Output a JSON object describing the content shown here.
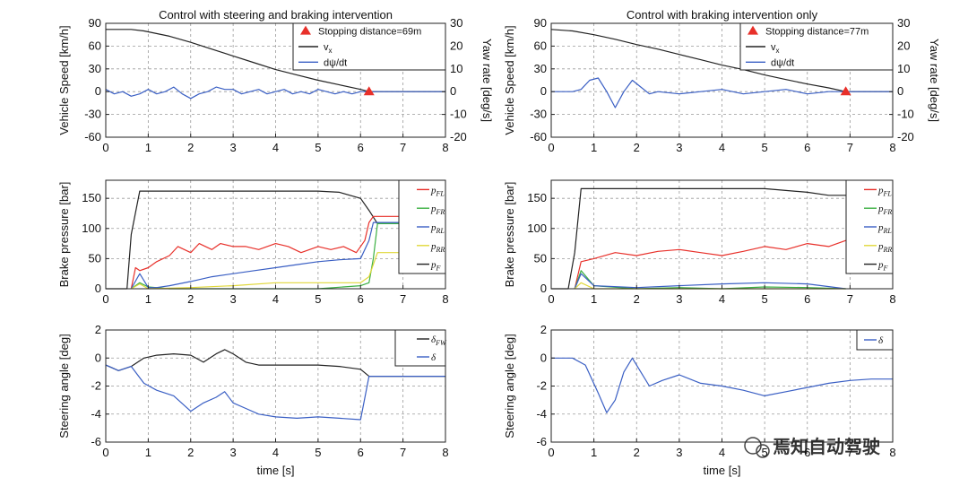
{
  "watermark": "焉知自动驾驶",
  "colors": {
    "black": "#222222",
    "red": "#e8302a",
    "green": "#3cb043",
    "blue": "#3a5fc4",
    "yellow": "#e0d83a",
    "marker": "#e8302a",
    "grid": "#9a9a9a"
  },
  "chart_data": [
    {
      "id": "left-speed",
      "type": "line",
      "title": "Control with steering and braking intervention",
      "ylabel": "Vehicle Speed [km/h]",
      "y2label": "Yaw rate [deg/s]",
      "xlim": [
        0,
        8
      ],
      "ylim": [
        -60,
        90
      ],
      "y2lim": [
        -20,
        30
      ],
      "xticks": [
        0,
        1,
        2,
        3,
        4,
        5,
        6,
        7,
        8
      ],
      "yticks": [
        90,
        60,
        30,
        0,
        -30,
        -60
      ],
      "y2ticks": [
        30,
        20,
        10,
        0,
        -10,
        -20
      ],
      "legend": {
        "position": "top-right",
        "entries": [
          {
            "label": "Stopping distance=69m",
            "kind": "marker",
            "color": "marker"
          },
          {
            "label": "v",
            "sub": "x",
            "kind": "line",
            "color": "black"
          },
          {
            "label": "dψ/dt",
            "kind": "line",
            "color": "blue"
          }
        ]
      },
      "marker": {
        "x": 6.2,
        "y": 0
      },
      "series": [
        {
          "color": "black",
          "axis": "y",
          "x": [
            0,
            0.6,
            0.9,
            1.5,
            2,
            2.5,
            3,
            3.5,
            4,
            4.5,
            5,
            5.5,
            6,
            6.2,
            8
          ],
          "y": [
            82,
            82,
            80,
            73,
            65,
            56,
            47,
            38,
            29,
            22,
            15,
            9,
            3,
            0,
            0
          ]
        },
        {
          "color": "blue",
          "axis": "y2",
          "x": [
            0,
            0.2,
            0.4,
            0.6,
            0.8,
            1,
            1.2,
            1.4,
            1.6,
            1.8,
            2,
            2.2,
            2.4,
            2.6,
            2.8,
            3,
            3.2,
            3.4,
            3.6,
            3.8,
            4,
            4.2,
            4.4,
            4.6,
            4.8,
            5,
            5.2,
            5.4,
            5.6,
            5.8,
            6,
            6.2,
            8
          ],
          "y": [
            1,
            -1,
            0,
            -2,
            -1,
            1,
            -1,
            0,
            2,
            -1,
            -3,
            -1,
            0,
            2,
            1,
            1,
            -1,
            0,
            1,
            -1,
            0,
            1,
            -1,
            0,
            -1,
            1,
            0,
            -1,
            0,
            -1,
            0,
            0,
            0
          ]
        }
      ]
    },
    {
      "id": "right-speed",
      "type": "line",
      "title": "Control with braking intervention only",
      "ylabel": "Vehicle Speed [km/h]",
      "y2label": "Yaw rate [deg/s]",
      "xlim": [
        0,
        8
      ],
      "ylim": [
        -60,
        90
      ],
      "y2lim": [
        -20,
        30
      ],
      "xticks": [
        0,
        1,
        2,
        3,
        4,
        5,
        6,
        7,
        8
      ],
      "yticks": [
        90,
        60,
        30,
        0,
        -30,
        -60
      ],
      "y2ticks": [
        30,
        20,
        10,
        0,
        -10,
        -20
      ],
      "legend": {
        "position": "top-right",
        "entries": [
          {
            "label": "Stopping distance=77m",
            "kind": "marker",
            "color": "marker"
          },
          {
            "label": "v",
            "sub": "x",
            "kind": "line",
            "color": "black"
          },
          {
            "label": "dψ/dt",
            "kind": "line",
            "color": "blue"
          }
        ]
      },
      "marker": {
        "x": 6.9,
        "y": 0
      },
      "series": [
        {
          "color": "black",
          "axis": "y",
          "x": [
            0,
            0.5,
            1,
            1.5,
            2,
            2.5,
            3,
            3.5,
            4,
            4.5,
            5,
            5.5,
            6,
            6.5,
            6.9,
            8
          ],
          "y": [
            82,
            80,
            75,
            69,
            62,
            56,
            49,
            42,
            35,
            29,
            22,
            16,
            10,
            5,
            0,
            0
          ]
        },
        {
          "color": "blue",
          "axis": "y2",
          "x": [
            0,
            0.5,
            0.7,
            0.9,
            1.1,
            1.3,
            1.5,
            1.7,
            1.9,
            2.1,
            2.3,
            2.5,
            3,
            3.5,
            4,
            4.5,
            5,
            5.5,
            6,
            6.5,
            7,
            8
          ],
          "y": [
            0,
            0,
            1,
            5,
            6,
            0,
            -7,
            0,
            5,
            2,
            -1,
            0,
            -1,
            0,
            1,
            -1,
            0,
            1,
            -1,
            0,
            0,
            0
          ]
        }
      ]
    },
    {
      "id": "left-brake",
      "type": "line",
      "ylabel": "Brake pressure [bar]",
      "xlim": [
        0,
        8
      ],
      "ylim": [
        0,
        180
      ],
      "xticks": [
        0,
        1,
        2,
        3,
        4,
        5,
        6,
        7,
        8
      ],
      "yticks": [
        150,
        100,
        50,
        0
      ],
      "legend": {
        "position": "top-right",
        "entries": [
          {
            "label": "p",
            "sub": "FL",
            "color": "red"
          },
          {
            "label": "p",
            "sub": "FR",
            "color": "green"
          },
          {
            "label": "p",
            "sub": "RL",
            "color": "blue"
          },
          {
            "label": "p",
            "sub": "RR",
            "color": "yellow"
          },
          {
            "label": "p",
            "sub": "F",
            "color": "black"
          }
        ]
      },
      "series": [
        {
          "color": "black",
          "x": [
            0,
            0.5,
            0.6,
            0.8,
            1.5,
            2,
            3,
            4,
            5,
            5.5,
            6,
            6.2,
            6.4,
            8
          ],
          "y": [
            0,
            0,
            90,
            162,
            162,
            162,
            162,
            162,
            162,
            160,
            150,
            130,
            108,
            108
          ]
        },
        {
          "color": "red",
          "x": [
            0.6,
            0.7,
            0.8,
            1,
            1.2,
            1.5,
            1.7,
            2,
            2.2,
            2.5,
            2.7,
            3,
            3.3,
            3.6,
            4,
            4.3,
            4.6,
            5,
            5.3,
            5.6,
            5.9,
            6.1,
            6.2,
            6.3,
            8
          ],
          "y": [
            0,
            35,
            30,
            35,
            45,
            55,
            70,
            60,
            75,
            65,
            75,
            70,
            70,
            65,
            75,
            70,
            60,
            70,
            65,
            70,
            60,
            80,
            110,
            120,
            120
          ]
        },
        {
          "color": "green",
          "x": [
            0.6,
            0.8,
            1,
            1.5,
            2,
            3,
            4,
            5,
            6,
            6.2,
            6.3,
            6.4,
            8
          ],
          "y": [
            0,
            10,
            3,
            0,
            0,
            0,
            0,
            0,
            5,
            10,
            50,
            108,
            108
          ]
        },
        {
          "color": "blue",
          "x": [
            0.6,
            0.8,
            1,
            1.2,
            1.5,
            2,
            2.5,
            3,
            3.5,
            4,
            4.5,
            5,
            5.5,
            6,
            6.2,
            6.3,
            8
          ],
          "y": [
            0,
            25,
            2,
            2,
            5,
            12,
            20,
            25,
            30,
            35,
            40,
            45,
            48,
            50,
            80,
            110,
            110
          ]
        },
        {
          "color": "yellow",
          "x": [
            0.6,
            0.8,
            1,
            2,
            3,
            4,
            5,
            6,
            6.2,
            6.4,
            8
          ],
          "y": [
            0,
            8,
            0,
            2,
            5,
            10,
            10,
            10,
            20,
            60,
            60
          ]
        }
      ]
    },
    {
      "id": "right-brake",
      "type": "line",
      "ylabel": "Brake pressure [bar]",
      "xlim": [
        0,
        8
      ],
      "ylim": [
        0,
        180
      ],
      "xticks": [
        0,
        1,
        2,
        3,
        4,
        5,
        6,
        7,
        8
      ],
      "yticks": [
        150,
        100,
        50,
        0
      ],
      "legend": {
        "position": "top-right",
        "entries": [
          {
            "label": "p",
            "sub": "FL",
            "color": "red"
          },
          {
            "label": "p",
            "sub": "FR",
            "color": "green"
          },
          {
            "label": "p",
            "sub": "RL",
            "color": "blue"
          },
          {
            "label": "p",
            "sub": "RR",
            "color": "yellow"
          },
          {
            "label": "p",
            "sub": "F",
            "color": "black"
          }
        ]
      },
      "series": [
        {
          "color": "black",
          "x": [
            0,
            0.4,
            0.55,
            0.7,
            1.5,
            2,
            3,
            4,
            5,
            6,
            6.5,
            8
          ],
          "y": [
            0,
            0,
            60,
            166,
            166,
            166,
            166,
            166,
            166,
            160,
            155,
            155
          ]
        },
        {
          "color": "red",
          "x": [
            0.55,
            0.7,
            1,
            1.5,
            2,
            2.5,
            3,
            3.5,
            4,
            4.5,
            5,
            5.5,
            6,
            6.5,
            6.9
          ],
          "y": [
            0,
            45,
            50,
            60,
            55,
            62,
            65,
            60,
            55,
            62,
            70,
            65,
            75,
            70,
            80
          ]
        },
        {
          "color": "green",
          "x": [
            0.55,
            0.7,
            1,
            2,
            3,
            4,
            5,
            6,
            6.9
          ],
          "y": [
            0,
            30,
            5,
            0,
            2,
            0,
            3,
            2,
            0
          ]
        },
        {
          "color": "blue",
          "x": [
            0.55,
            0.7,
            1,
            2,
            3,
            4,
            5,
            6,
            6.9
          ],
          "y": [
            0,
            25,
            5,
            2,
            5,
            8,
            10,
            8,
            0
          ]
        },
        {
          "color": "yellow",
          "x": [
            0.55,
            0.7,
            1,
            2,
            4,
            6,
            6.9
          ],
          "y": [
            0,
            10,
            0,
            0,
            0,
            0,
            0
          ]
        }
      ]
    },
    {
      "id": "left-steer",
      "type": "line",
      "ylabel": "Steering angle [deg]",
      "xlabel": "time [s]",
      "xlim": [
        0,
        8
      ],
      "ylim": [
        -6,
        2
      ],
      "xticks": [
        0,
        1,
        2,
        3,
        4,
        5,
        6,
        7,
        8
      ],
      "yticks": [
        2,
        0,
        -2,
        -4,
        -6
      ],
      "legend": {
        "position": "top-right",
        "entries": [
          {
            "label": "δ",
            "sub": "FW",
            "color": "black"
          },
          {
            "label": "δ",
            "color": "blue"
          }
        ]
      },
      "series": [
        {
          "color": "black",
          "x": [
            0,
            0.3,
            0.6,
            0.9,
            1.2,
            1.6,
            2,
            2.3,
            2.6,
            2.8,
            3,
            3.3,
            3.6,
            4,
            4.5,
            5,
            5.5,
            6,
            6.2,
            8
          ],
          "y": [
            -0.5,
            -0.9,
            -0.6,
            0,
            0.2,
            0.3,
            0.2,
            -0.3,
            0.3,
            0.6,
            0.3,
            -0.3,
            -0.5,
            -0.5,
            -0.5,
            -0.5,
            -0.6,
            -0.8,
            -1.3,
            -1.3
          ]
        },
        {
          "color": "blue",
          "x": [
            0,
            0.3,
            0.6,
            0.9,
            1.2,
            1.6,
            2,
            2.3,
            2.6,
            2.8,
            3,
            3.3,
            3.6,
            4,
            4.5,
            5,
            5.5,
            6,
            6.2,
            8
          ],
          "y": [
            -0.5,
            -0.9,
            -0.6,
            -1.8,
            -2.3,
            -2.7,
            -3.8,
            -3.2,
            -2.8,
            -2.4,
            -3.2,
            -3.6,
            -4,
            -4.2,
            -4.3,
            -4.2,
            -4.3,
            -4.4,
            -1.3,
            -1.3
          ]
        }
      ]
    },
    {
      "id": "right-steer",
      "type": "line",
      "ylabel": "Steering angle [deg]",
      "xlabel": "time [s]",
      "xlim": [
        0,
        8
      ],
      "ylim": [
        -6,
        2
      ],
      "xticks": [
        0,
        1,
        2,
        3,
        4,
        5,
        6,
        7,
        8
      ],
      "yticks": [
        2,
        0,
        -2,
        -4,
        -6
      ],
      "legend": {
        "position": "top-right",
        "entries": [
          {
            "label": "δ",
            "color": "blue"
          }
        ]
      },
      "series": [
        {
          "color": "blue",
          "x": [
            0,
            0.5,
            0.8,
            1.1,
            1.3,
            1.5,
            1.7,
            1.9,
            2.1,
            2.3,
            2.6,
            3,
            3.5,
            4,
            4.5,
            5,
            5.5,
            6,
            6.5,
            7,
            7.5,
            8
          ],
          "y": [
            0,
            0,
            -0.5,
            -2.5,
            -3.9,
            -3,
            -1,
            0,
            -1,
            -2,
            -1.6,
            -1.2,
            -1.8,
            -2,
            -2.3,
            -2.7,
            -2.4,
            -2.1,
            -1.8,
            -1.6,
            -1.5,
            -1.5
          ]
        }
      ]
    }
  ]
}
